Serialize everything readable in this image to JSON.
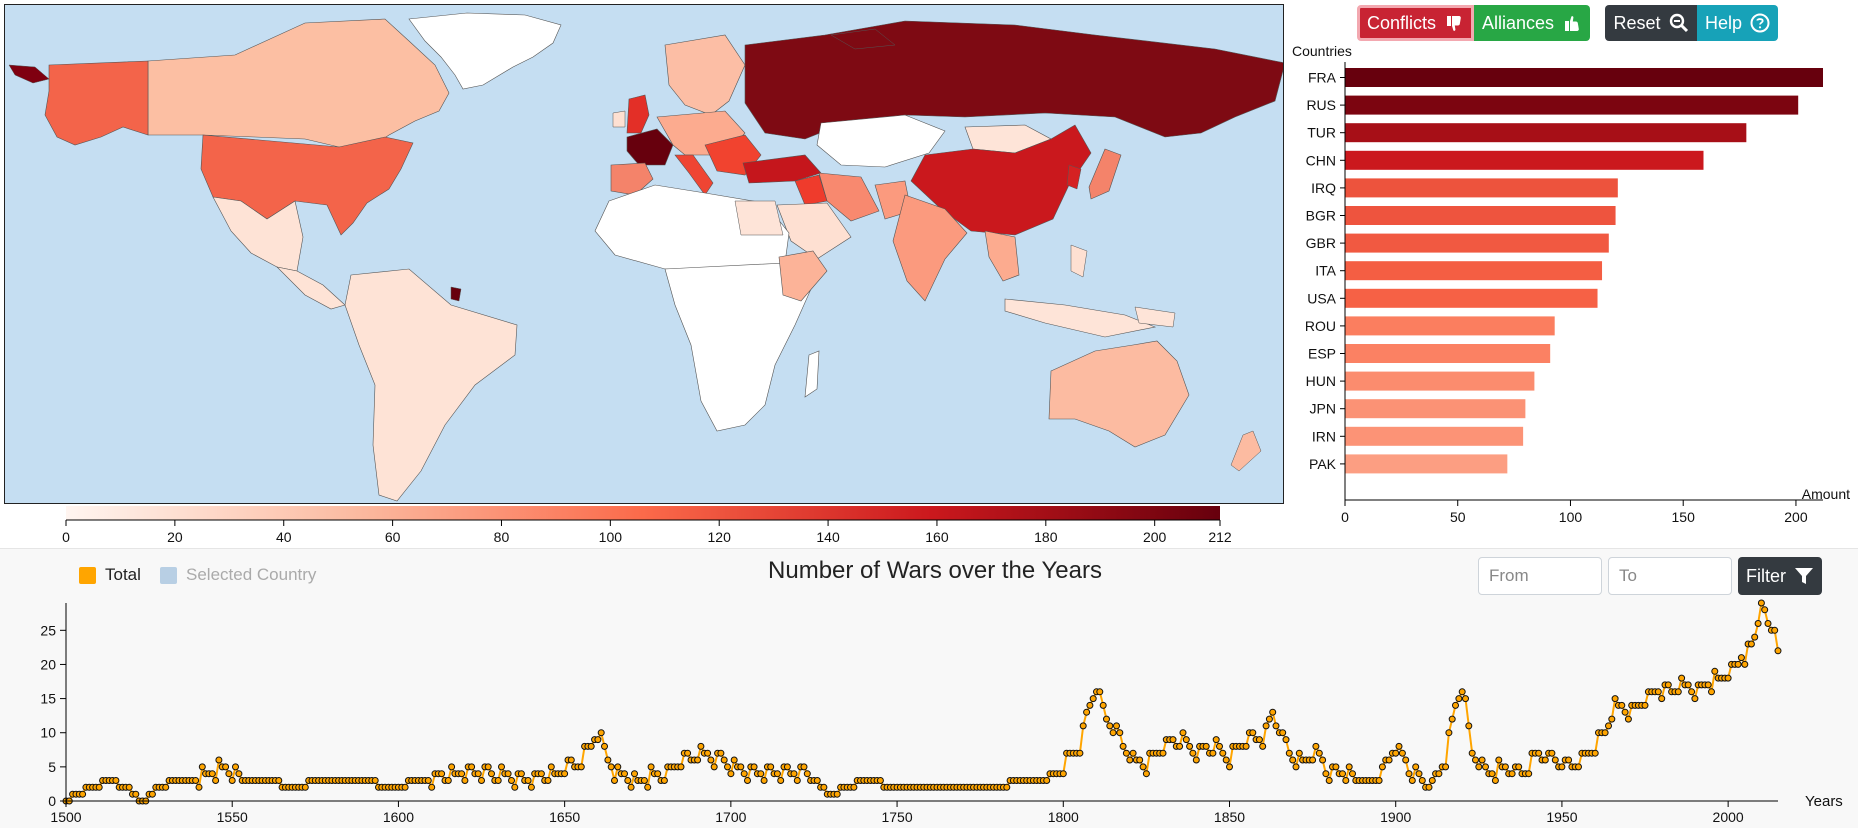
{
  "toolbar": {
    "conflicts_label": "Conflicts",
    "alliances_label": "Alliances",
    "reset_label": "Reset",
    "help_label": "Help",
    "colors": {
      "conflicts": "#c82333",
      "alliances": "#28a745",
      "reset": "#343a40",
      "help": "#17a2b8"
    }
  },
  "map": {
    "ocean_color": "#c5def2",
    "legend": {
      "ticks": [
        "0",
        "20",
        "40",
        "60",
        "80",
        "100",
        "120",
        "140",
        "160",
        "180",
        "200",
        "212"
      ],
      "min": 0,
      "max": 212,
      "color_low": "#fff5f0",
      "color_high": "#67000d"
    }
  },
  "bar_chart": {
    "y_label": "Countries",
    "x_label": "Amount",
    "x_ticks": [
      "0",
      "50",
      "100",
      "150",
      "200"
    ],
    "chart_data": {
      "type": "bar",
      "orientation": "horizontal",
      "categories": [
        "FRA",
        "RUS",
        "TUR",
        "CHN",
        "IRQ",
        "BGR",
        "GBR",
        "ITA",
        "USA",
        "ROU",
        "ESP",
        "HUN",
        "JPN",
        "IRN",
        "PAK"
      ],
      "values": [
        212,
        201,
        178,
        159,
        121,
        120,
        117,
        114,
        112,
        93,
        91,
        84,
        80,
        79,
        72
      ],
      "xlim": [
        0,
        212
      ],
      "xlabel": "Amount",
      "ylabel": "Countries"
    }
  },
  "timeline": {
    "title": "Number of Wars over the Years",
    "legend_total": "Total",
    "legend_selected": "Selected Country",
    "total_color": "#ffa500",
    "selected_color": "#b8cfe4",
    "from_placeholder": "From",
    "to_placeholder": "To",
    "filter_label": "Filter",
    "x_axis_label": "Years",
    "x_ticks": [
      "1500",
      "1550",
      "1600",
      "1650",
      "1700",
      "1750",
      "1800",
      "1850",
      "1900",
      "1950",
      "2000"
    ],
    "y_ticks": [
      "0",
      "5",
      "10",
      "15",
      "20",
      "25"
    ],
    "chart_data": {
      "type": "line",
      "series": [
        {
          "name": "Total",
          "color": "#ffa500"
        }
      ],
      "xlim": [
        1500,
        2015
      ],
      "ylim": [
        0,
        29
      ],
      "xlabel": "Years",
      "keypoints": [
        [
          1500,
          0
        ],
        [
          1503,
          1
        ],
        [
          1508,
          2
        ],
        [
          1513,
          3
        ],
        [
          1518,
          2
        ],
        [
          1523,
          0
        ],
        [
          1528,
          2
        ],
        [
          1533,
          3
        ],
        [
          1538,
          3
        ],
        [
          1543,
          4
        ],
        [
          1548,
          5
        ],
        [
          1553,
          3
        ],
        [
          1560,
          3
        ],
        [
          1568,
          2
        ],
        [
          1578,
          3
        ],
        [
          1588,
          3
        ],
        [
          1598,
          2
        ],
        [
          1608,
          3
        ],
        [
          1618,
          4
        ],
        [
          1628,
          4
        ],
        [
          1638,
          3
        ],
        [
          1648,
          4
        ],
        [
          1655,
          6
        ],
        [
          1660,
          10
        ],
        [
          1665,
          4
        ],
        [
          1672,
          3
        ],
        [
          1680,
          4
        ],
        [
          1690,
          7
        ],
        [
          1698,
          6
        ],
        [
          1705,
          4
        ],
        [
          1715,
          4
        ],
        [
          1722,
          4
        ],
        [
          1730,
          1
        ],
        [
          1740,
          3
        ],
        [
          1750,
          2
        ],
        [
          1760,
          2
        ],
        [
          1770,
          2
        ],
        [
          1780,
          2
        ],
        [
          1788,
          3
        ],
        [
          1795,
          3
        ],
        [
          1800,
          5
        ],
        [
          1805,
          8
        ],
        [
          1808,
          14
        ],
        [
          1810,
          17
        ],
        [
          1813,
          12
        ],
        [
          1817,
          9
        ],
        [
          1821,
          6
        ],
        [
          1825,
          5
        ],
        [
          1830,
          8
        ],
        [
          1835,
          9
        ],
        [
          1840,
          7
        ],
        [
          1845,
          8
        ],
        [
          1850,
          6
        ],
        [
          1855,
          9
        ],
        [
          1860,
          9
        ],
        [
          1863,
          13
        ],
        [
          1867,
          8
        ],
        [
          1872,
          5
        ],
        [
          1876,
          7
        ],
        [
          1880,
          4
        ],
        [
          1885,
          4
        ],
        [
          1890,
          3
        ],
        [
          1895,
          3
        ],
        [
          1900,
          8
        ],
        [
          1905,
          4
        ],
        [
          1910,
          2
        ],
        [
          1915,
          6
        ],
        [
          1918,
          14
        ],
        [
          1920,
          17
        ],
        [
          1923,
          7
        ],
        [
          1928,
          4
        ],
        [
          1933,
          5
        ],
        [
          1938,
          4
        ],
        [
          1943,
          7
        ],
        [
          1948,
          6
        ],
        [
          1953,
          5
        ],
        [
          1958,
          7
        ],
        [
          1962,
          9
        ],
        [
          1966,
          14
        ],
        [
          1970,
          13
        ],
        [
          1974,
          14
        ],
        [
          1978,
          16
        ],
        [
          1982,
          16
        ],
        [
          1986,
          17
        ],
        [
          1990,
          16
        ],
        [
          1994,
          17
        ],
        [
          1998,
          18
        ],
        [
          2001,
          19
        ],
        [
          2004,
          21
        ],
        [
          2007,
          22
        ],
        [
          2009,
          26
        ],
        [
          2010,
          29
        ],
        [
          2012,
          25
        ],
        [
          2014,
          25
        ],
        [
          2015,
          23
        ]
      ]
    }
  }
}
